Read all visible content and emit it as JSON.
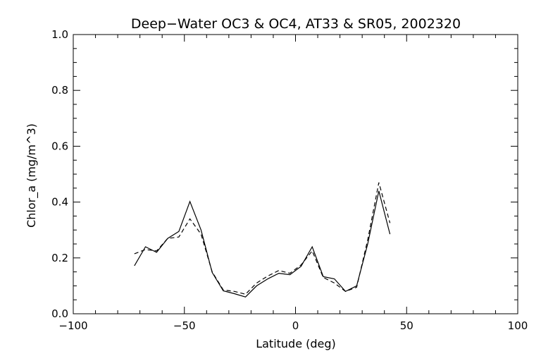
{
  "chart_data": {
    "type": "line",
    "title": "Deep−Water OC3 & OC4, AT33 & SR05, 2002320",
    "xlabel": "Latitude (deg)",
    "ylabel": "Chlor_a (mg/m^3)",
    "xlim": [
      -100,
      100
    ],
    "ylim": [
      0.0,
      1.0
    ],
    "x_ticks": [
      -100,
      -50,
      0,
      50,
      100
    ],
    "x_tick_labels": [
      "−100",
      "−50",
      "0",
      "50",
      "100"
    ],
    "y_ticks": [
      0.0,
      0.2,
      0.4,
      0.6,
      0.8,
      1.0
    ],
    "y_tick_labels": [
      "0.0",
      "0.2",
      "0.4",
      "0.6",
      "0.8",
      "1.0"
    ],
    "grid": false,
    "series": [
      {
        "style": "solid",
        "color": "#000000",
        "x": [
          -72.5,
          -67.5,
          -62.5,
          -57.5,
          -52.5,
          -47.5,
          -42.5,
          -37.5,
          -32.5,
          -27.5,
          -22.5,
          -17.5,
          -12.5,
          -7.5,
          -2.5,
          2.5,
          7.5,
          12.5,
          17.5,
          22.5,
          27.5,
          32.5,
          37.5,
          42.5
        ],
        "y": [
          0.172,
          0.24,
          0.22,
          0.27,
          0.295,
          0.402,
          0.3,
          0.148,
          0.082,
          0.072,
          0.06,
          0.1,
          0.125,
          0.145,
          0.14,
          0.17,
          0.24,
          0.133,
          0.125,
          0.08,
          0.1,
          0.25,
          0.44,
          0.285
        ]
      },
      {
        "style": "dashed",
        "color": "#000000",
        "x": [
          -72.5,
          -67.5,
          -62.5,
          -57.5,
          -52.5,
          -47.5,
          -42.5,
          -37.5,
          -32.5,
          -27.5,
          -22.5,
          -17.5,
          -12.5,
          -7.5,
          -2.5,
          2.5,
          7.5,
          12.5,
          17.5,
          22.5,
          27.5,
          32.5,
          37.5,
          42.5
        ],
        "y": [
          0.215,
          0.23,
          0.225,
          0.27,
          0.275,
          0.34,
          0.285,
          0.15,
          0.085,
          0.08,
          0.07,
          0.11,
          0.135,
          0.155,
          0.145,
          0.175,
          0.225,
          0.13,
          0.11,
          0.08,
          0.095,
          0.265,
          0.47,
          0.325
        ]
      }
    ]
  }
}
